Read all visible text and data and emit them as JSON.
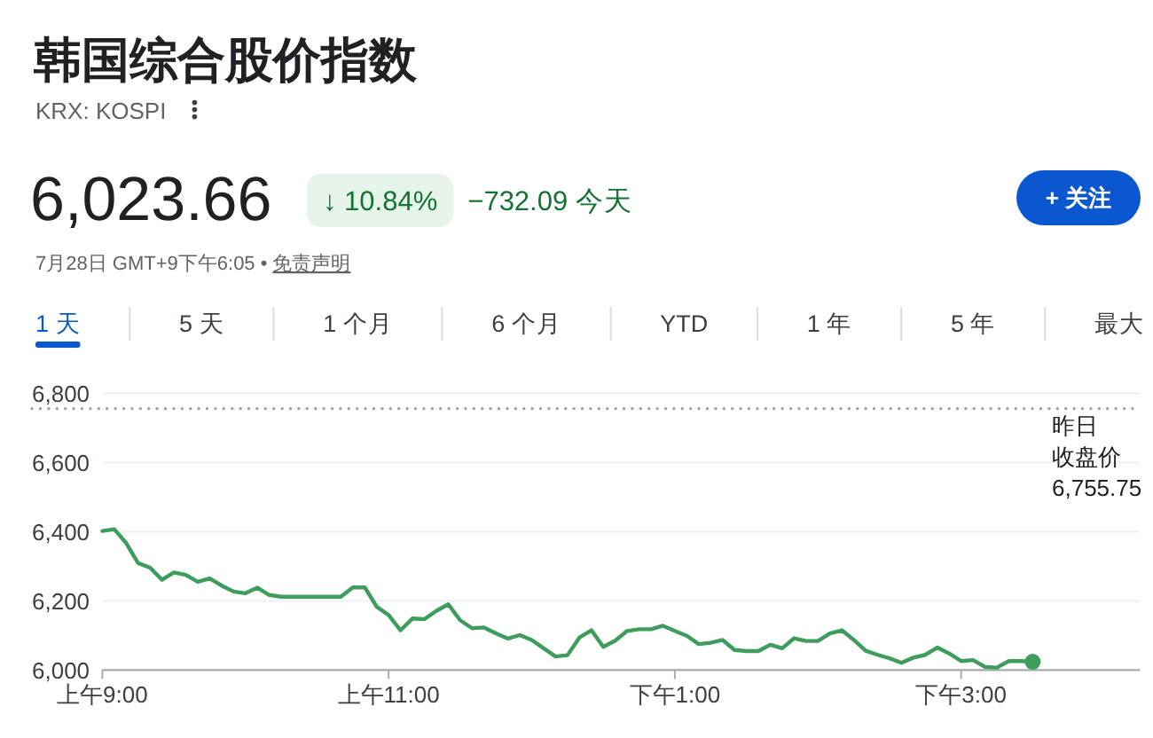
{
  "chart_data": {
    "type": "line",
    "title": "韩国综合股价指数",
    "subtitle": "KRX: KOSPI",
    "categories": [
      "上午9:00",
      null,
      null,
      null,
      null,
      null,
      null,
      null,
      null,
      null,
      null,
      null,
      null,
      null,
      null,
      null,
      null,
      null,
      null,
      null,
      null,
      null,
      null,
      null,
      "上午11:00",
      null,
      null,
      null,
      null,
      null,
      null,
      null,
      null,
      null,
      null,
      null,
      null,
      null,
      null,
      null,
      null,
      null,
      null,
      null,
      null,
      null,
      null,
      null,
      "下午1:00",
      null,
      null,
      null,
      null,
      null,
      null,
      null,
      null,
      null,
      null,
      null,
      null,
      null,
      null,
      null,
      null,
      null,
      null,
      null,
      null,
      null,
      null,
      null,
      "下午3:00",
      null,
      null,
      null,
      null,
      null,
      null,
      null,
      null,
      null,
      null,
      null,
      null,
      null,
      null,
      null
    ],
    "values": [
      6402,
      6407,
      6367,
      6309,
      6296,
      6261,
      6282,
      6275,
      6255,
      6265,
      6244,
      6227,
      6222,
      6238,
      6217,
      6212,
      6212,
      6212,
      6212,
      6212,
      6212,
      6239,
      6239,
      6183,
      6159,
      6115,
      6149,
      6147,
      6171,
      6190,
      6144,
      6121,
      6123,
      6106,
      6091,
      6101,
      6087,
      6063,
      6039,
      6043,
      6094,
      6115,
      6067,
      6085,
      6113,
      6118,
      6118,
      6128,
      6113,
      6099,
      6075,
      6079,
      6087,
      6058,
      6055,
      6055,
      6073,
      6063,
      6092,
      6084,
      6084,
      6106,
      6115,
      6087,
      6056,
      6044,
      6034,
      6021,
      6036,
      6044,
      6065,
      6048,
      6026,
      6029,
      6009,
      6007,
      6026,
      6026,
      6024,
      null,
      null,
      null,
      null,
      null,
      null,
      null,
      null,
      null
    ],
    "color": "#3e9c5d",
    "ylim": [
      6000,
      6800
    ],
    "yticks": [
      {
        "value": 6000,
        "label": "6,000"
      },
      {
        "value": 6200,
        "label": "6,200"
      },
      {
        "value": 6400,
        "label": "6,400"
      },
      {
        "value": 6600,
        "label": "6,600"
      },
      {
        "value": 6800,
        "label": "6,800"
      }
    ],
    "grid": "y",
    "ref_lines": [
      {
        "axis": "y",
        "value": 6755.75,
        "label": "昨日收盘价 6,755.75",
        "color": "#9aa0a6",
        "line_style": "dotted"
      }
    ],
    "annotations": [
      "6,023.66",
      "↓ 10.84%",
      "−732.09 今天",
      "+ 关注",
      "7月28日 GMT+9下午6:05 •",
      "免责声明",
      "1 天",
      "5 天",
      "1 个月",
      "6 个月",
      "YTD",
      "1 年",
      "5 年",
      "最大"
    ]
  }
}
